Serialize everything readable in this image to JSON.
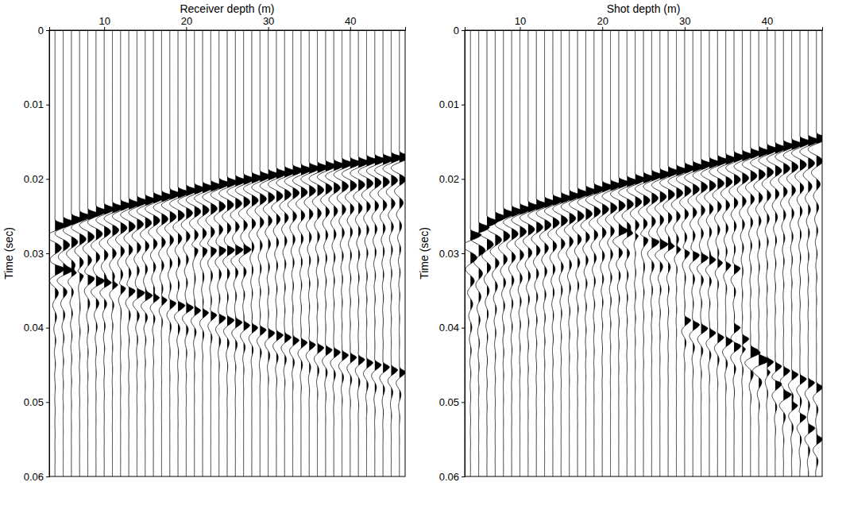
{
  "chart_data": [
    {
      "type": "wiggle",
      "x_label": "Receiver depth (m)",
      "y_label": "Time (sec)",
      "x": [
        4,
        5,
        6,
        7,
        8,
        9,
        10,
        11,
        12,
        13,
        14,
        15,
        16,
        17,
        18,
        19,
        20,
        21,
        22,
        23,
        24,
        25,
        26,
        27,
        28,
        29,
        30,
        31,
        32,
        33,
        34,
        35,
        36,
        37,
        38,
        39,
        40,
        41,
        42,
        43,
        44,
        45,
        46
      ],
      "xlim": [
        3.3,
        46.7
      ],
      "xticks": [
        10,
        20,
        30,
        40
      ],
      "ylim": [
        0,
        0.06
      ],
      "yticks": [
        0,
        0.01,
        0.02,
        0.03,
        0.04,
        0.05,
        0.06
      ],
      "events": [
        {
          "x": [
            4,
            5,
            6,
            7,
            8,
            9,
            10,
            11,
            12,
            13,
            14,
            15,
            16,
            17,
            18,
            19,
            20,
            21,
            22,
            23,
            24,
            25,
            26,
            27,
            28,
            29,
            30,
            31,
            32,
            33,
            34,
            35,
            36,
            37,
            38,
            39,
            40,
            41,
            42,
            43,
            44,
            45,
            46
          ],
          "times": [
            0.0262,
            0.0258,
            0.0254,
            0.025,
            0.0247,
            0.0243,
            0.024,
            0.0238,
            0.0235,
            0.0233,
            0.023,
            0.0228,
            0.0225,
            0.0223,
            0.022,
            0.0218,
            0.0215,
            0.0213,
            0.0211,
            0.0209,
            0.0206,
            0.0204,
            0.0202,
            0.02,
            0.0198,
            0.0196,
            0.0194,
            0.0192,
            0.019,
            0.0188,
            0.0187,
            0.0185,
            0.0184,
            0.0182,
            0.0181,
            0.0179,
            0.0178,
            0.0177,
            0.0175,
            0.0174,
            0.0173,
            0.0171,
            0.017
          ],
          "amplitude": 1
        },
        {
          "x": [
            4,
            5,
            6,
            7,
            8,
            9,
            10,
            11,
            12,
            13,
            14,
            15,
            16,
            17,
            18,
            19,
            20,
            21,
            22,
            23,
            24,
            25,
            26,
            27,
            28,
            29,
            30,
            31,
            32,
            33,
            34,
            35,
            36,
            37,
            38,
            39,
            40,
            41,
            42,
            43,
            44,
            45,
            46
          ],
          "times": [
            0.032,
            0.0323,
            0.0327,
            0.033,
            0.0333,
            0.0337,
            0.034,
            0.0343,
            0.0347,
            0.035,
            0.0353,
            0.0357,
            0.036,
            0.0363,
            0.0367,
            0.037,
            0.0373,
            0.0377,
            0.038,
            0.0383,
            0.0387,
            0.039,
            0.0393,
            0.0397,
            0.04,
            0.0403,
            0.0407,
            0.041,
            0.0413,
            0.0417,
            0.042,
            0.0423,
            0.0427,
            0.043,
            0.0433,
            0.0437,
            0.044,
            0.0443,
            0.0447,
            0.045,
            0.0453,
            0.0457,
            0.046
          ],
          "amplitude": 0.6
        },
        {
          "x": [
            21,
            22,
            23,
            24,
            25,
            26,
            27
          ],
          "times": [
            0.0295,
            0.0295,
            0.0295,
            0.0295,
            0.0295,
            0.0295,
            0.0295
          ],
          "amplitude": 0.5
        }
      ]
    },
    {
      "type": "wiggle",
      "x_label": "Shot depth (m)",
      "y_label": "Time (sec)",
      "x": [
        4,
        5,
        6,
        7,
        8,
        9,
        10,
        11,
        12,
        13,
        14,
        15,
        16,
        17,
        18,
        19,
        20,
        21,
        22,
        23,
        24,
        25,
        26,
        27,
        28,
        29,
        30,
        31,
        32,
        33,
        34,
        35,
        36,
        37,
        38,
        39,
        40,
        41,
        42,
        43,
        44,
        45,
        46
      ],
      "xlim": [
        3.3,
        46.7
      ],
      "xticks": [
        10,
        20,
        30,
        40
      ],
      "ylim": [
        0,
        0.06
      ],
      "yticks": [
        0,
        0.01,
        0.02,
        0.03,
        0.04,
        0.05,
        0.06
      ],
      "events": [
        {
          "x": [
            4,
            5,
            6,
            7,
            8,
            9,
            10,
            11,
            12,
            13,
            14,
            15,
            16,
            17,
            18,
            19,
            20,
            21,
            22,
            23,
            24,
            25,
            26,
            27,
            28,
            29,
            30,
            31,
            32,
            33,
            34,
            35,
            36,
            37,
            38,
            39,
            40,
            41,
            42,
            43,
            44,
            45,
            46
          ],
          "times": [
            0.0275,
            0.0265,
            0.0257,
            0.0251,
            0.0246,
            0.0243,
            0.024,
            0.0237,
            0.0234,
            0.0231,
            0.0228,
            0.0225,
            0.0222,
            0.0219,
            0.0216,
            0.0213,
            0.021,
            0.0208,
            0.0205,
            0.0203,
            0.02,
            0.0198,
            0.0195,
            0.0193,
            0.019,
            0.0188,
            0.0185,
            0.0183,
            0.018,
            0.0178,
            0.0175,
            0.0173,
            0.017,
            0.0168,
            0.0165,
            0.0163,
            0.016,
            0.0158,
            0.0155,
            0.0153,
            0.015,
            0.0148,
            0.0145
          ],
          "amplitude": 1
        },
        {
          "x": [
            22,
            23,
            24,
            25,
            26,
            27,
            28,
            29,
            30,
            31,
            32,
            33,
            34,
            35,
            36
          ],
          "times": [
            0.027,
            0.0274,
            0.0277,
            0.0281,
            0.0284,
            0.0288,
            0.0291,
            0.0295,
            0.0299,
            0.0302,
            0.0306,
            0.0309,
            0.0313,
            0.0316,
            0.032
          ],
          "amplitude": 0.55
        },
        {
          "x": [
            30,
            31,
            32,
            33,
            34,
            35,
            36,
            37,
            38,
            39,
            40,
            41,
            42,
            43,
            44,
            45,
            46
          ],
          "times": [
            0.039,
            0.0396,
            0.0401,
            0.0407,
            0.0413,
            0.0418,
            0.0424,
            0.0429,
            0.0435,
            0.0441,
            0.0446,
            0.0452,
            0.0458,
            0.0463,
            0.0469,
            0.0474,
            0.048
          ],
          "amplitude": 0.6
        },
        {
          "x": [
            36,
            37,
            38,
            39,
            40,
            41,
            42,
            43,
            44,
            45,
            46
          ],
          "times": [
            0.04,
            0.0415,
            0.043,
            0.0445,
            0.046,
            0.0475,
            0.049,
            0.0505,
            0.052,
            0.0535,
            0.055
          ],
          "amplitude": 0.6
        }
      ]
    }
  ]
}
